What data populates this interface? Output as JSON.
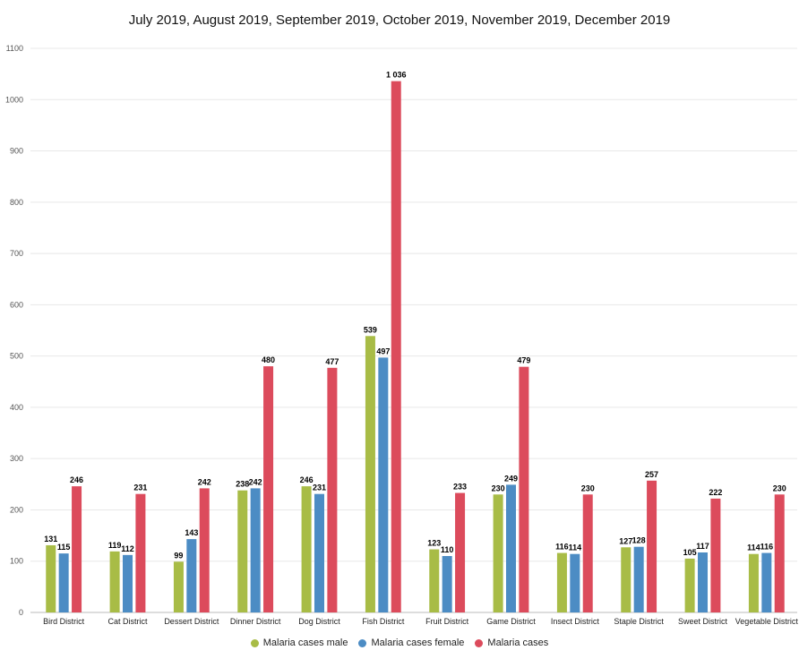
{
  "chart_data": {
    "type": "bar",
    "title": "July 2019, August 2019, September 2019, October 2019, November 2019, December 2019",
    "xlabel": "",
    "ylabel": "",
    "ylim": [
      0,
      1100
    ],
    "yticks": [
      0,
      100,
      200,
      300,
      400,
      500,
      600,
      700,
      800,
      900,
      1000,
      1100
    ],
    "grid": true,
    "legend_position": "bottom",
    "categories": [
      "Bird District",
      "Cat District",
      "Dessert District",
      "Dinner District",
      "Dog District",
      "Fish District",
      "Fruit District",
      "Game District",
      "Insect District",
      "Staple District",
      "Sweet District",
      "Vegetable District"
    ],
    "series": [
      {
        "name": "Malaria cases male",
        "color": "#a8bc46",
        "values": [
          131,
          119,
          99,
          238,
          246,
          539,
          123,
          230,
          116,
          127,
          105,
          114
        ],
        "labels": [
          "131",
          "119",
          "99",
          "238",
          "246",
          "539",
          "123",
          "230",
          "116",
          "127",
          "105",
          "114"
        ]
      },
      {
        "name": "Malaria cases female",
        "color": "#4c8cc4",
        "values": [
          115,
          112,
          143,
          242,
          231,
          497,
          110,
          249,
          114,
          128,
          117,
          116
        ],
        "labels": [
          "115",
          "112",
          "143",
          "242",
          "231",
          "497",
          "110",
          "249",
          "114",
          "128",
          "117",
          "116"
        ]
      },
      {
        "name": "Malaria cases",
        "color": "#dc4b5c",
        "values": [
          246,
          231,
          242,
          480,
          477,
          1036,
          233,
          479,
          230,
          257,
          222,
          230
        ],
        "labels": [
          "246",
          "231",
          "242",
          "480",
          "477",
          "1 036",
          "233",
          "479",
          "230",
          "257",
          "222",
          "230"
        ]
      }
    ]
  }
}
